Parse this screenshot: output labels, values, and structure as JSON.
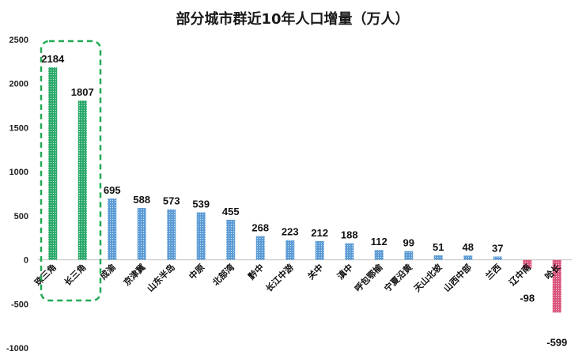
{
  "chart_data": {
    "type": "bar",
    "title": "部分城市群近10年人口增量（万人）",
    "xlabel": "",
    "ylabel": "",
    "ylim": [
      -1000,
      2500
    ],
    "yticks": [
      2500,
      2000,
      1500,
      1000,
      500,
      0,
      -500,
      -1000
    ],
    "grid": false,
    "categories": [
      "珠三角",
      "长三角",
      "成渝",
      "京津冀",
      "山东半岛",
      "中原",
      "北部湾",
      "黔中",
      "长江中游",
      "关中",
      "滇中",
      "呼包鄂榆",
      "宁夏沿黄",
      "天山北坡",
      "山西中部",
      "兰西",
      "辽中南",
      "哈长"
    ],
    "values": [
      2184,
      1807,
      695,
      588,
      573,
      539,
      455,
      268,
      223,
      212,
      188,
      112,
      99,
      51,
      48,
      37,
      -98,
      -599
    ],
    "colors": {
      "highlight": "#2ba86b",
      "normal": "#5b9bd5",
      "negative": "#d9547a",
      "dash_box": "#22aa55"
    },
    "highlight_categories": [
      "珠三角",
      "长三角"
    ]
  }
}
